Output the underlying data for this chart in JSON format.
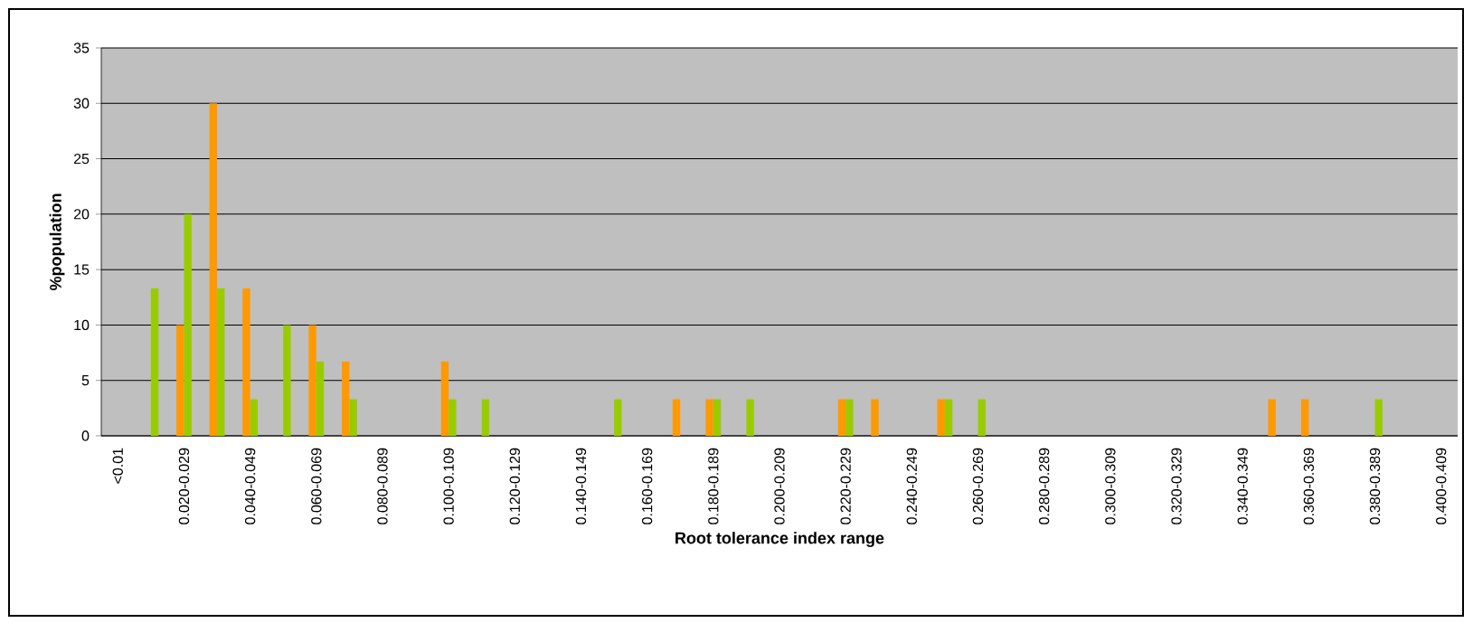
{
  "chart_data": {
    "type": "bar",
    "xlabel": "Root tolerance index range",
    "ylabel": "%population",
    "categories": [
      "<0.01",
      null,
      "0.020-0.029",
      null,
      "0.040-0.049",
      null,
      "0.060-0.069",
      null,
      "0.080-0.089",
      null,
      "0.100-0.109",
      null,
      "0.120-0.129",
      null,
      "0.140-0.149",
      null,
      "0.160-0.169",
      null,
      "0.180-0.189",
      null,
      "0.200-0.209",
      null,
      "0.220-0.229",
      null,
      "0.240-0.249",
      null,
      "0.260-0.269",
      null,
      "0.280-0.289",
      null,
      "0.300-0.309",
      null,
      "0.320-0.329",
      null,
      "0.340-0.349",
      null,
      "0.360-0.369",
      null,
      "0.380-0.389",
      null,
      "0.400-0.409"
    ],
    "series": [
      {
        "color": "#ff9900",
        "values": [
          0,
          0,
          10,
          30,
          13.3,
          0,
          10,
          6.7,
          0,
          0,
          6.7,
          0,
          0,
          0,
          0,
          0,
          0,
          3.3,
          3.3,
          0,
          0,
          0,
          3.3,
          3.3,
          0,
          3.3,
          0,
          0,
          0,
          0,
          0,
          0,
          0,
          0,
          0,
          3.3,
          3.3,
          0,
          0,
          0,
          0
        ]
      },
      {
        "color": "#99cc00",
        "values": [
          0,
          13.3,
          20,
          13.3,
          3.3,
          10,
          6.7,
          3.3,
          0,
          0,
          3.3,
          3.3,
          0,
          0,
          0,
          3.3,
          0,
          0,
          3.3,
          3.3,
          0,
          0,
          3.3,
          0,
          0,
          3.3,
          3.3,
          0,
          0,
          0,
          0,
          0,
          0,
          0,
          0,
          0,
          0,
          0,
          3.3,
          0,
          0
        ]
      }
    ],
    "ylim": [
      0,
      35
    ],
    "yticks": [
      0,
      5,
      10,
      15,
      20,
      25,
      30,
      35
    ],
    "grid": "y"
  }
}
